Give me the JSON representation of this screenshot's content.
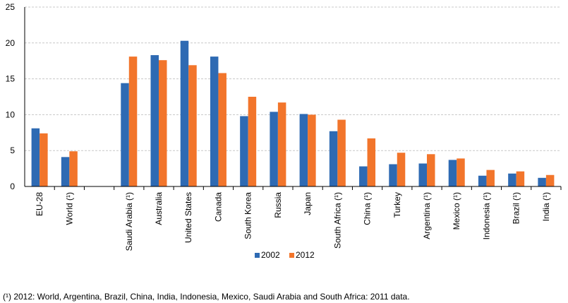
{
  "chart_data": {
    "type": "bar",
    "title": "",
    "xlabel": "",
    "ylabel": "",
    "ylim": [
      0,
      25
    ],
    "yticks": [
      0,
      5,
      10,
      15,
      20,
      25
    ],
    "grid": true,
    "legend_position": "bottom-center",
    "categories": [
      "EU-28",
      "World  (¹)",
      "",
      "Saudi Arabia (¹)",
      "Australia",
      "United States",
      "Canada",
      "South Korea",
      "Russia",
      "Japan",
      "South Africa (¹)",
      "China (¹)",
      "Turkey",
      "Argentina (¹)",
      "Mexico (¹)",
      "Indonesia (¹)",
      "Brazil (¹)",
      "India (¹)"
    ],
    "series": [
      {
        "name": "2002",
        "color": "#2e6ab3",
        "values": [
          8.1,
          4.1,
          null,
          14.4,
          18.3,
          20.3,
          18.1,
          9.8,
          10.4,
          10.1,
          7.7,
          2.8,
          3.1,
          3.2,
          3.7,
          1.5,
          1.8,
          1.2
        ]
      },
      {
        "name": "2012",
        "color": "#f2752b",
        "values": [
          7.4,
          4.9,
          null,
          18.1,
          17.6,
          16.9,
          15.8,
          12.5,
          11.7,
          10.0,
          9.3,
          6.7,
          4.7,
          4.5,
          3.9,
          2.3,
          2.1,
          1.6
        ]
      }
    ]
  },
  "footnote": "(¹) 2012: World, Argentina, Brazil, China, India, Indonesia, Mexico, Saudi Arabia and South Africa: 2011 data."
}
